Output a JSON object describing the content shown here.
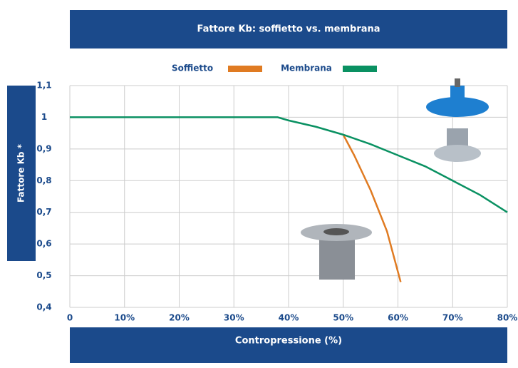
{
  "chart_data": {
    "type": "line",
    "title": "Fattore Kb: soffietto vs. membrana",
    "x_label": "Contropressione (%)",
    "y_label": "Fattore Kb *",
    "xlim": [
      0,
      80
    ],
    "ylim": [
      0.4,
      1.1
    ],
    "xticks": [
      0,
      {
        "value": 10,
        "label": "10%"
      },
      {
        "value": 20,
        "label": "20%"
      },
      {
        "value": 30,
        "label": "30%"
      },
      {
        "value": 40,
        "label": "40%"
      },
      {
        "value": 50,
        "label": "50%"
      },
      {
        "value": 60,
        "label": "60%"
      },
      {
        "value": 70,
        "label": "70%"
      },
      {
        "value": 80,
        "label": "80%"
      }
    ],
    "yticks": [
      {
        "value": 0.4,
        "label": "0,4"
      },
      {
        "value": 0.5,
        "label": "0,5"
      },
      {
        "value": 0.6,
        "label": "0,6"
      },
      {
        "value": 0.7,
        "label": "0,7"
      },
      {
        "value": 0.8,
        "label": "0,8"
      },
      {
        "value": 0.9,
        "label": "0,9"
      },
      1,
      {
        "value": 1.1,
        "label": "1,1"
      }
    ],
    "grid": true,
    "series": [
      {
        "name": "Soffietto",
        "color": "#e07b22",
        "x": [
          50,
          52,
          55,
          58,
          60.5
        ],
        "values": [
          0.945,
          0.88,
          0.77,
          0.64,
          0.48
        ]
      },
      {
        "name": "Membrana",
        "color": "#0a9162",
        "x": [
          0,
          38,
          40,
          45,
          50,
          55,
          60,
          65,
          70,
          75,
          80
        ],
        "values": [
          1,
          1,
          0.99,
          0.97,
          0.945,
          0.915,
          0.88,
          0.845,
          0.8,
          0.755,
          0.7
        ]
      }
    ]
  }
}
